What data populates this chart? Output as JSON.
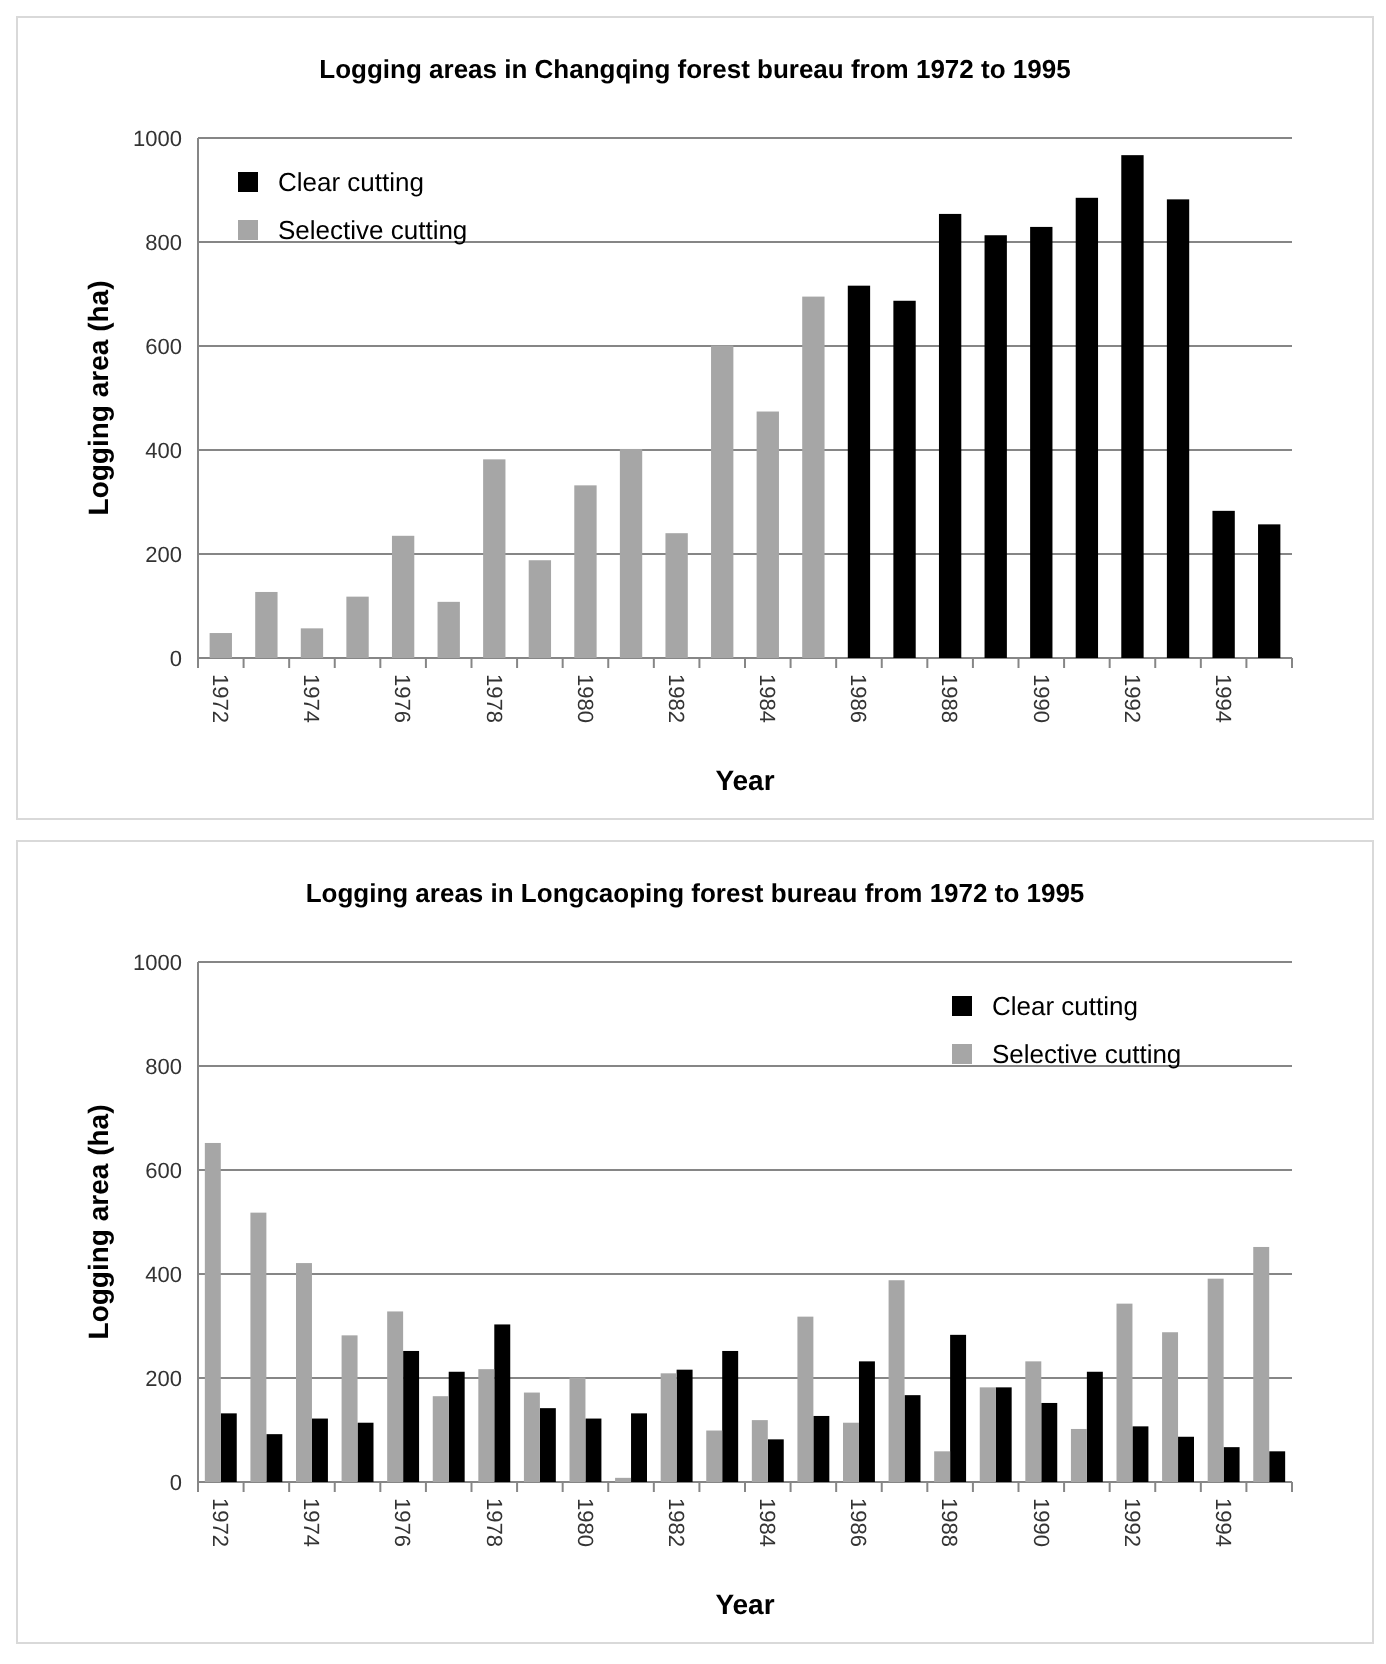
{
  "chart_data": [
    {
      "type": "bar",
      "title": "Logging areas in Changqing forest bureau from 1972 to 1995",
      "xlabel": "Year",
      "ylabel": "Logging area (ha)",
      "categories": [
        "1972",
        null,
        "1974",
        null,
        "1976",
        null,
        "1978",
        null,
        "1980",
        null,
        "1982",
        null,
        "1984",
        null,
        "1986",
        null,
        "1988",
        null,
        "1990",
        null,
        "1992",
        null,
        "1994",
        null
      ],
      "series": [
        {
          "name": "Clear cutting",
          "color": "#000000",
          "values": [
            null,
            null,
            null,
            null,
            null,
            null,
            null,
            null,
            null,
            null,
            null,
            null,
            null,
            null,
            716,
            687,
            854,
            813,
            829,
            885,
            967,
            882,
            283,
            257
          ]
        },
        {
          "name": "Selective cutting",
          "color": "#a6a6a6",
          "values": [
            48,
            127,
            57,
            118,
            235,
            108,
            382,
            188,
            332,
            402,
            240,
            601,
            474,
            695,
            null,
            null,
            null,
            null,
            null,
            null,
            null,
            null,
            null,
            null
          ]
        }
      ],
      "ylim": [
        0,
        1000
      ],
      "yticks": [
        0,
        200,
        400,
        600,
        800,
        1000
      ],
      "grid": "y",
      "legend": "top left"
    },
    {
      "type": "bar",
      "title": "Logging areas in Longcaoping forest bureau from 1972 to 1995",
      "xlabel": "Year",
      "ylabel": "Logging area (ha)",
      "categories": [
        "1972",
        null,
        "1974",
        null,
        "1976",
        null,
        "1978",
        null,
        "1980",
        null,
        "1982",
        null,
        "1984",
        null,
        "1986",
        null,
        "1988",
        null,
        "1990",
        null,
        "1992",
        null,
        "1994",
        null
      ],
      "series": [
        {
          "name": "Clear cutting",
          "color": "#000000",
          "values": [
            132,
            92,
            122,
            114,
            252,
            212,
            303,
            142,
            122,
            132,
            216,
            252,
            82,
            127,
            232,
            167,
            283,
            182,
            152,
            212,
            107,
            87,
            67,
            59
          ]
        },
        {
          "name": "Selective cutting",
          "color": "#a6a6a6",
          "values": [
            652,
            518,
            421,
            282,
            328,
            165,
            217,
            172,
            201,
            8,
            209,
            99,
            119,
            318,
            114,
            388,
            59,
            182,
            232,
            102,
            343,
            288,
            391,
            452
          ]
        }
      ],
      "ylim": [
        0,
        1000
      ],
      "yticks": [
        0,
        200,
        400,
        600,
        800,
        1000
      ],
      "grid": "y",
      "legend": "top right"
    }
  ]
}
